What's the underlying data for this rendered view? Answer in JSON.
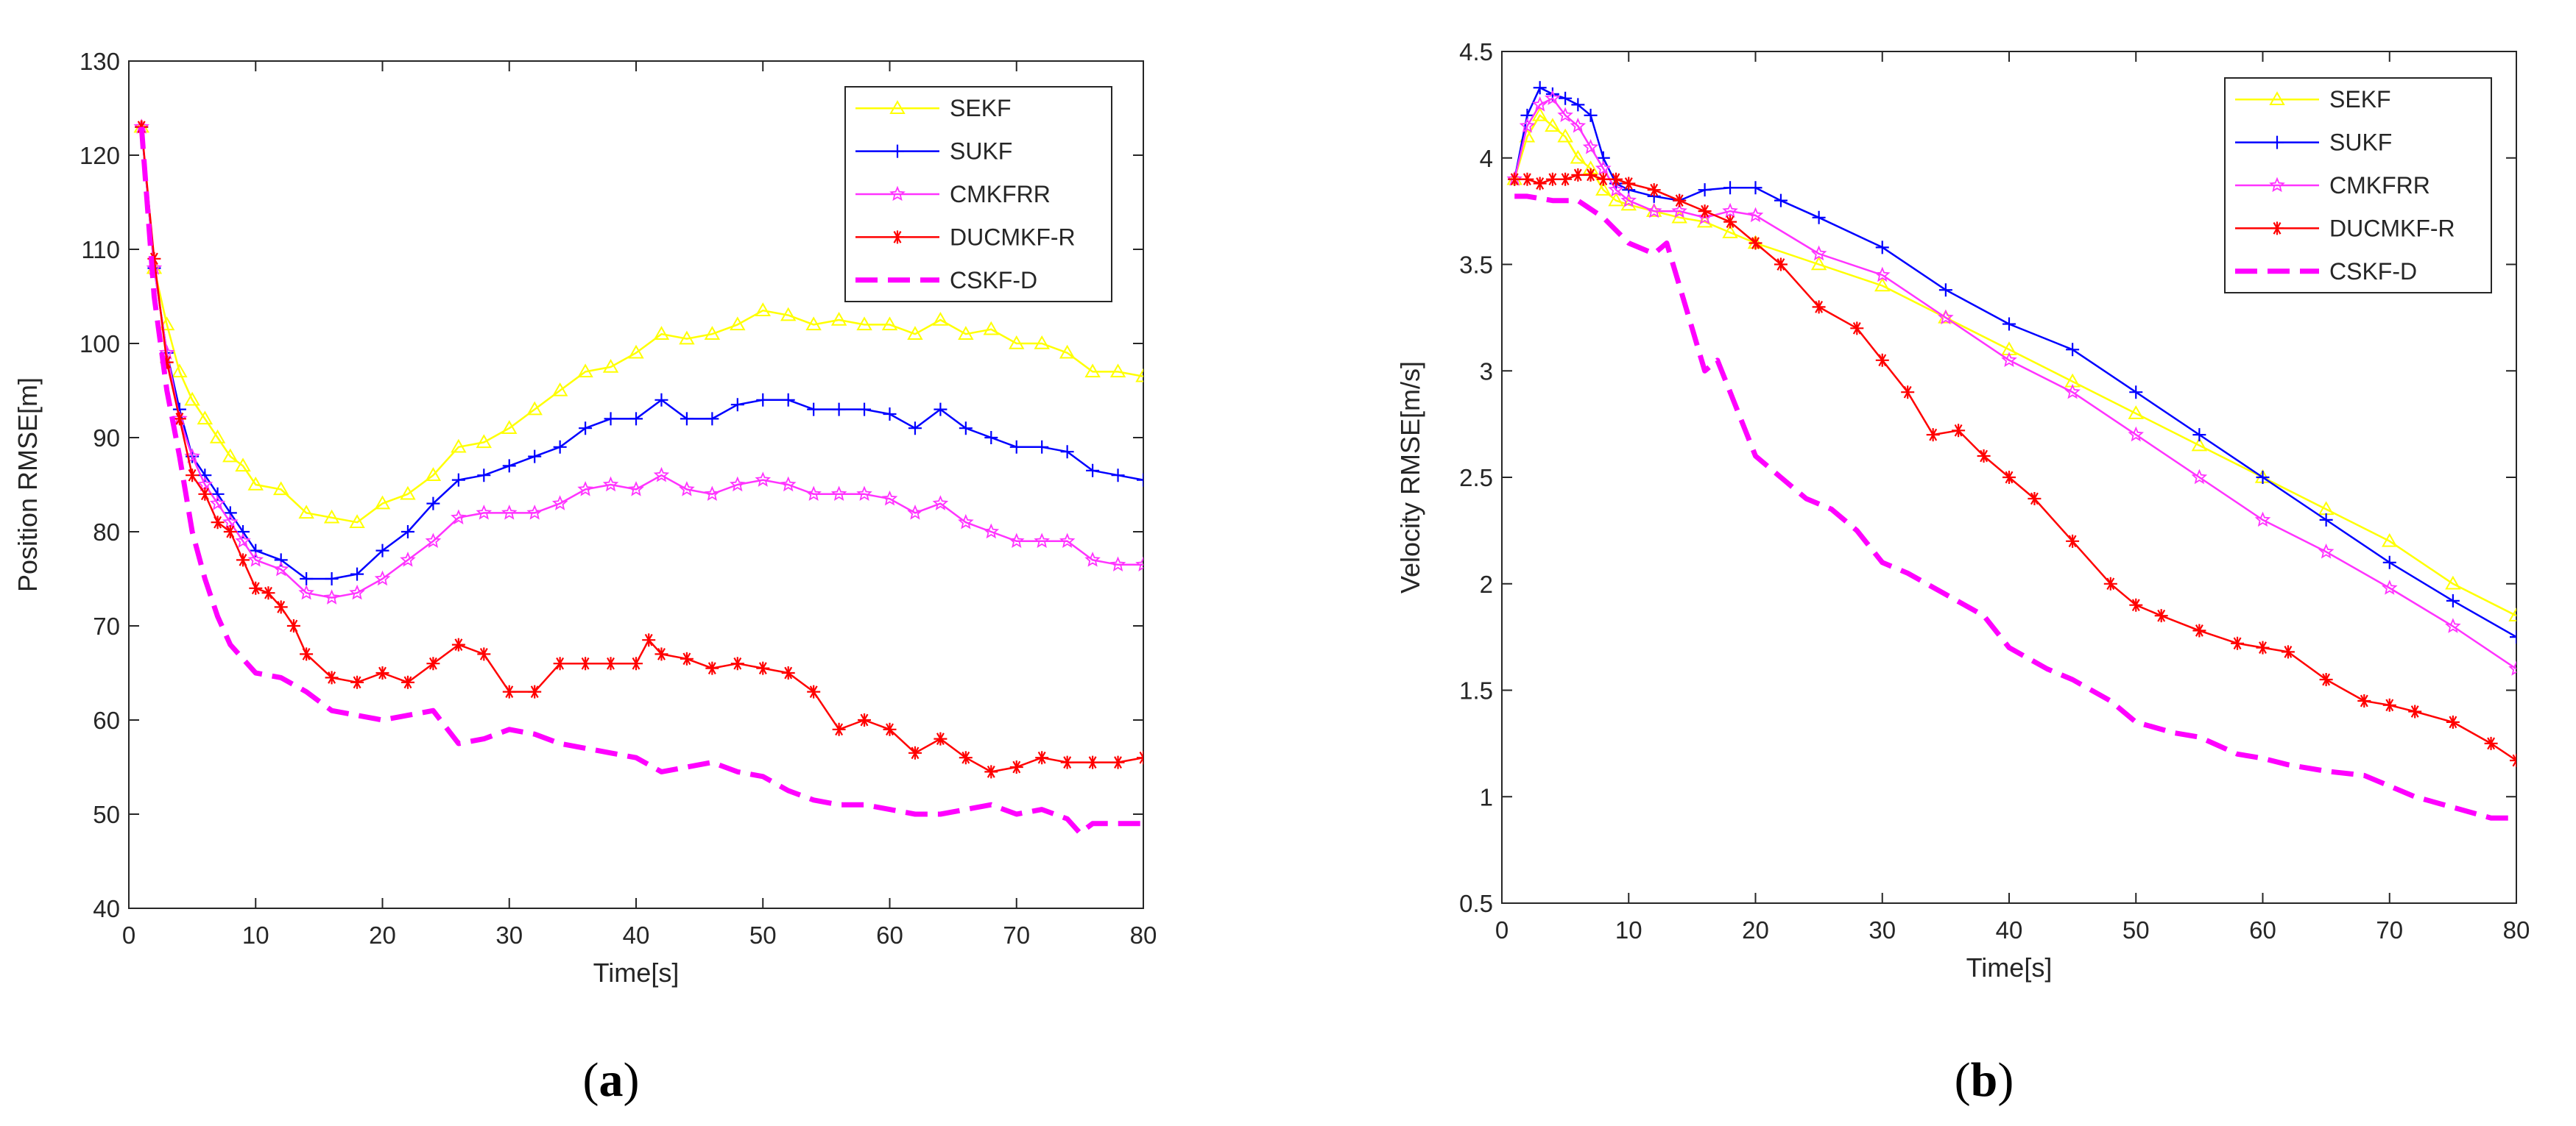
{
  "colors": {
    "SEKF": "#ffff00",
    "SUKF": "#0000ff",
    "CMKFRR": "#ff33ff",
    "DUCMKF-R": "#ff0000",
    "CSKF-D": "#ff00ff"
  },
  "chart_data": [
    {
      "type": "line",
      "panel_label": "(a)",
      "title": "",
      "xlabel": "Time[s]",
      "ylabel": "Position RMSE[m]",
      "xlim": [
        0,
        80
      ],
      "ylim": [
        40,
        130
      ],
      "xticks": [
        0,
        10,
        20,
        30,
        40,
        50,
        60,
        70,
        80
      ],
      "yticks": [
        40,
        50,
        60,
        70,
        80,
        90,
        100,
        110,
        120,
        130
      ],
      "xtick_labels": [
        "0",
        "10",
        "20",
        "30",
        "40",
        "50",
        "60",
        "70",
        "80"
      ],
      "ytick_labels": [
        "40",
        "50",
        "60",
        "70",
        "80",
        "90",
        "100",
        "110",
        "120",
        "130"
      ],
      "legend_position": "top-right",
      "series": [
        {
          "name": "SEKF",
          "marker": "triangle",
          "dashed": false,
          "x": [
            1,
            2,
            3,
            4,
            5,
            6,
            7,
            8,
            9,
            10,
            12,
            14,
            16,
            18,
            20,
            22,
            24,
            26,
            28,
            30,
            32,
            34,
            36,
            38,
            40,
            42,
            44,
            46,
            48,
            50,
            52,
            54,
            56,
            58,
            60,
            62,
            64,
            66,
            68,
            70,
            72,
            74,
            76,
            78,
            80
          ],
          "values": [
            123,
            108,
            102,
            97,
            94,
            92,
            90,
            88,
            87,
            85,
            84.5,
            82,
            81.5,
            81,
            83,
            84,
            86,
            89,
            89.5,
            91,
            93,
            95,
            97,
            97.5,
            99,
            101,
            100.5,
            101,
            102,
            103.5,
            103,
            102,
            102.5,
            102,
            102,
            101,
            102.5,
            101,
            101.5,
            100,
            100,
            99,
            97,
            97,
            96.5
          ]
        },
        {
          "name": "SUKF",
          "marker": "plus",
          "dashed": false,
          "x": [
            1,
            2,
            3,
            4,
            5,
            6,
            7,
            8,
            9,
            10,
            12,
            14,
            16,
            18,
            20,
            22,
            24,
            26,
            28,
            30,
            32,
            34,
            36,
            38,
            40,
            42,
            44,
            46,
            48,
            50,
            52,
            54,
            56,
            58,
            60,
            62,
            64,
            66,
            68,
            70,
            72,
            74,
            76,
            78,
            80
          ],
          "values": [
            123,
            108,
            99,
            93,
            88,
            86,
            84,
            82,
            80,
            78,
            77,
            75,
            75,
            75.5,
            78,
            80,
            83,
            85.5,
            86,
            87,
            88,
            89,
            91,
            92,
            92,
            94,
            92,
            92,
            93.5,
            94,
            94,
            93,
            93,
            93,
            92.5,
            91,
            93,
            91,
            90,
            89,
            89,
            88.5,
            86.5,
            86,
            85.5
          ]
        },
        {
          "name": "CMKFRR",
          "marker": "star",
          "dashed": false,
          "x": [
            1,
            2,
            3,
            4,
            5,
            6,
            7,
            8,
            9,
            10,
            12,
            14,
            16,
            18,
            20,
            22,
            24,
            26,
            28,
            30,
            32,
            34,
            36,
            38,
            40,
            42,
            44,
            46,
            48,
            50,
            52,
            54,
            56,
            58,
            60,
            62,
            64,
            66,
            68,
            70,
            72,
            74,
            76,
            78,
            80
          ],
          "values": [
            123,
            108,
            99,
            92,
            88,
            85,
            83,
            81,
            79,
            77,
            76,
            73.5,
            73,
            73.5,
            75,
            77,
            79,
            81.5,
            82,
            82,
            82,
            83,
            84.5,
            85,
            84.5,
            86,
            84.5,
            84,
            85,
            85.5,
            85,
            84,
            84,
            84,
            83.5,
            82,
            83,
            81,
            80,
            79,
            79,
            79,
            77,
            76.5,
            76.5
          ]
        },
        {
          "name": "DUCMKF-R",
          "marker": "asterisk",
          "dashed": false,
          "x": [
            1,
            2,
            3,
            4,
            5,
            6,
            7,
            8,
            9,
            10,
            11,
            12,
            13,
            14,
            16,
            18,
            20,
            22,
            24,
            26,
            28,
            30,
            32,
            34,
            36,
            38,
            40,
            41,
            42,
            44,
            46,
            48,
            50,
            52,
            54,
            56,
            58,
            60,
            62,
            64,
            66,
            68,
            70,
            72,
            74,
            76,
            78,
            80
          ],
          "values": [
            123,
            109,
            98,
            92,
            86,
            84,
            81,
            80,
            77,
            74,
            73.5,
            72,
            70,
            67,
            64.5,
            64,
            65,
            64,
            66,
            68,
            67,
            63,
            63,
            66,
            66,
            66,
            66,
            68.5,
            67,
            66.5,
            65.5,
            66,
            65.5,
            65,
            63,
            59,
            60,
            59,
            56.5,
            58,
            56,
            54.5,
            55,
            56,
            55.5,
            55.5,
            55.5,
            56
          ]
        },
        {
          "name": "CSKF-D",
          "marker": "none",
          "dashed": true,
          "x": [
            1,
            2,
            3,
            4,
            5,
            6,
            7,
            8,
            9,
            10,
            12,
            14,
            16,
            18,
            20,
            22,
            24,
            26,
            28,
            30,
            32,
            34,
            36,
            38,
            40,
            42,
            44,
            46,
            48,
            50,
            52,
            54,
            56,
            58,
            60,
            62,
            64,
            66,
            68,
            70,
            72,
            74,
            75,
            76,
            78,
            80
          ],
          "values": [
            123,
            105,
            95,
            88,
            80,
            75,
            71,
            68,
            66.5,
            65,
            64.5,
            63,
            61,
            60.5,
            60,
            60.5,
            61,
            57.5,
            58,
            59,
            58.5,
            57.5,
            57,
            56.5,
            56,
            54.5,
            55,
            55.5,
            54.5,
            54,
            52.5,
            51.5,
            51,
            51,
            50.5,
            50,
            50,
            50.5,
            51,
            50,
            50.5,
            49.5,
            48,
            49,
            49,
            49
          ]
        }
      ]
    },
    {
      "type": "line",
      "panel_label": "(b)",
      "title": "",
      "xlabel": "Time[s]",
      "ylabel": "Velocity RMSE[m/s]",
      "xlim": [
        0,
        80
      ],
      "ylim": [
        0.5,
        4.5
      ],
      "xticks": [
        0,
        10,
        20,
        30,
        40,
        50,
        60,
        70,
        80
      ],
      "yticks": [
        0.5,
        1,
        1.5,
        2,
        2.5,
        3,
        3.5,
        4,
        4.5
      ],
      "xtick_labels": [
        "0",
        "10",
        "20",
        "30",
        "40",
        "50",
        "60",
        "70",
        "80"
      ],
      "ytick_labels": [
        "0.5",
        "1",
        "1.5",
        "2",
        "2.5",
        "3",
        "3.5",
        "4",
        "4.5"
      ],
      "legend_position": "top-right",
      "series": [
        {
          "name": "SEKF",
          "marker": "triangle",
          "dashed": false,
          "x": [
            1,
            2,
            3,
            4,
            5,
            6,
            7,
            8,
            9,
            10,
            12,
            14,
            16,
            18,
            20,
            25,
            30,
            35,
            40,
            45,
            50,
            55,
            60,
            65,
            70,
            75,
            80
          ],
          "values": [
            3.9,
            4.1,
            4.2,
            4.15,
            4.1,
            4.0,
            3.95,
            3.85,
            3.8,
            3.78,
            3.75,
            3.72,
            3.7,
            3.65,
            3.6,
            3.5,
            3.4,
            3.25,
            3.1,
            2.95,
            2.8,
            2.65,
            2.5,
            2.35,
            2.2,
            2.0,
            1.85
          ]
        },
        {
          "name": "SUKF",
          "marker": "plus",
          "dashed": false,
          "x": [
            1,
            2,
            3,
            4,
            5,
            6,
            7,
            8,
            9,
            10,
            12,
            14,
            16,
            18,
            20,
            22,
            25,
            30,
            35,
            40,
            45,
            50,
            55,
            60,
            65,
            70,
            75,
            80
          ],
          "values": [
            3.9,
            4.2,
            4.33,
            4.3,
            4.28,
            4.25,
            4.2,
            4.0,
            3.88,
            3.85,
            3.82,
            3.8,
            3.85,
            3.86,
            3.86,
            3.8,
            3.72,
            3.58,
            3.38,
            3.22,
            3.1,
            2.9,
            2.7,
            2.5,
            2.3,
            2.1,
            1.92,
            1.75
          ]
        },
        {
          "name": "CMKFRR",
          "marker": "star",
          "dashed": false,
          "x": [
            1,
            2,
            3,
            4,
            5,
            6,
            7,
            8,
            9,
            10,
            12,
            14,
            16,
            18,
            20,
            25,
            30,
            35,
            40,
            45,
            50,
            55,
            60,
            65,
            70,
            75,
            80
          ],
          "values": [
            3.9,
            4.15,
            4.25,
            4.28,
            4.2,
            4.15,
            4.05,
            3.95,
            3.85,
            3.8,
            3.75,
            3.75,
            3.72,
            3.75,
            3.73,
            3.55,
            3.45,
            3.25,
            3.05,
            2.9,
            2.7,
            2.5,
            2.3,
            2.15,
            1.98,
            1.8,
            1.6
          ]
        },
        {
          "name": "DUCMKF-R",
          "marker": "asterisk",
          "dashed": false,
          "x": [
            1,
            2,
            3,
            4,
            5,
            6,
            7,
            8,
            9,
            10,
            12,
            14,
            16,
            18,
            20,
            22,
            25,
            28,
            30,
            32,
            34,
            36,
            38,
            40,
            42,
            45,
            48,
            50,
            52,
            55,
            58,
            60,
            62,
            65,
            68,
            70,
            72,
            75,
            78,
            80
          ],
          "values": [
            3.9,
            3.9,
            3.88,
            3.9,
            3.9,
            3.92,
            3.92,
            3.9,
            3.9,
            3.88,
            3.85,
            3.8,
            3.75,
            3.7,
            3.6,
            3.5,
            3.3,
            3.2,
            3.05,
            2.9,
            2.7,
            2.72,
            2.6,
            2.5,
            2.4,
            2.2,
            2.0,
            1.9,
            1.85,
            1.78,
            1.72,
            1.7,
            1.68,
            1.55,
            1.45,
            1.43,
            1.4,
            1.35,
            1.25,
            1.17
          ]
        },
        {
          "name": "CSKF-D",
          "marker": "none",
          "dashed": true,
          "x": [
            1,
            2,
            4,
            6,
            8,
            10,
            12,
            13,
            14,
            15,
            16,
            17,
            18,
            20,
            22,
            24,
            26,
            28,
            30,
            32,
            35,
            38,
            40,
            43,
            45,
            48,
            50,
            53,
            55,
            58,
            60,
            62,
            65,
            68,
            70,
            72,
            75,
            78,
            80
          ],
          "values": [
            3.82,
            3.82,
            3.8,
            3.8,
            3.72,
            3.6,
            3.55,
            3.6,
            3.4,
            3.2,
            3.0,
            3.05,
            2.9,
            2.6,
            2.5,
            2.4,
            2.35,
            2.25,
            2.1,
            2.05,
            1.95,
            1.85,
            1.7,
            1.6,
            1.55,
            1.45,
            1.35,
            1.3,
            1.28,
            1.2,
            1.18,
            1.15,
            1.12,
            1.1,
            1.05,
            1.0,
            0.95,
            0.9,
            0.9
          ]
        }
      ]
    }
  ]
}
